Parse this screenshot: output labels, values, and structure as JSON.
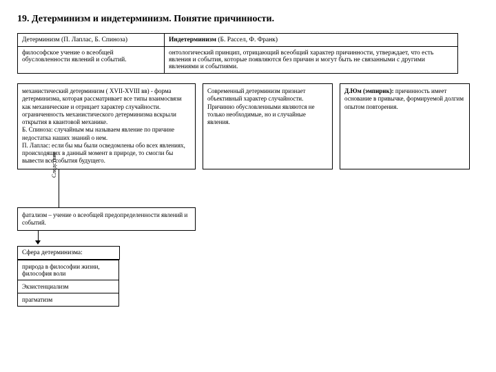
{
  "title": "19. Детерминизм и индетерминизм. Понятие причинности.",
  "top": {
    "r1c1": "Детерминизм (П. Лаплас, Б. Спиноза)",
    "r1c2_b": "Индетерминизм",
    "r1c2_rest": " (Б. Рассел, Ф. Франк)",
    "r2c1": "философское учение о всеобщей обусловленности явлений и событий.",
    "r2c2": "онтологический принцип, отрицающий всеобщий характер причинности, утверждает, что есть явления и события, которые появляются без причин и могут быть не связанными с другими явлениями и событиями."
  },
  "row3": {
    "left": "механистический детерминизм ( XVII-XVIII вв) - форма детерминизма, которая рассматривает все типы взаимосвязи как механические и отрицает характер случайности. ограниченность механистического детерминизма вскрыли открытия в квантовой механике.\nБ. Спиноза: случайным мы называем явление по причине недостатка наших знаний о нем.\n П. Лаплас: если бы мы были осведомлены обо всех явлениях, происходящих в данный момент в природе, то смогли бы вывести все события будущего.",
    "mid": "Современный детерминизм признает объективный характер случайности. Причинно обусловленными являются не только необходимые, но и случайные явления.",
    "right_b": "Д.Юм (эмпирик):",
    "right_rest": " причинность имеет основание в привычке, формируемой долгим опытом повторения."
  },
  "connector_label": "Следствие",
  "fatalism": "фатализм – учение о всеобщей предопределенности явлений и событий.",
  "sphere_title": "Сфера детерминизма:",
  "sphere_rows": {
    "r1": "природа в философии жизни, философия воли",
    "r2": "Экзистенциализм",
    "r3": "прагматизм"
  },
  "colors": {
    "border": "#000000",
    "bg": "#ffffff",
    "text": "#000000"
  }
}
